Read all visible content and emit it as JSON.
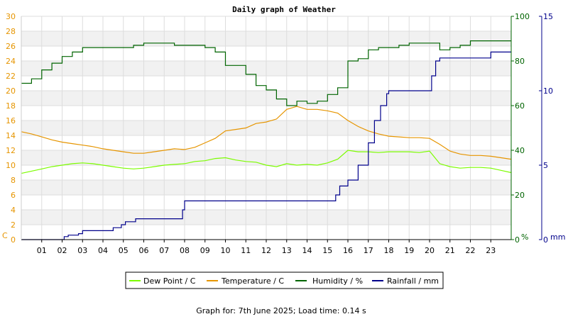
{
  "chart_data": {
    "type": "line",
    "title": "Daily graph of Weather",
    "footer": "Graph for: 7th June 2025; Load time: 0.14 s",
    "grid": true,
    "legend_placement": "bottom-center",
    "x_ticks": [
      "01",
      "02",
      "03",
      "04",
      "05",
      "06",
      "07",
      "08",
      "09",
      "10",
      "11",
      "12",
      "13",
      "14",
      "15",
      "16",
      "17",
      "18",
      "19",
      "20",
      "21",
      "22",
      "23"
    ],
    "x_range_hours": [
      0,
      24
    ],
    "axes": {
      "left": {
        "label": "C",
        "range": [
          0,
          30
        ],
        "ticks": [
          "0",
          "2",
          "4",
          "6",
          "8",
          "10",
          "12",
          "14",
          "16",
          "18",
          "20",
          "22",
          "24",
          "26",
          "28",
          "30"
        ],
        "color": "#e69500"
      },
      "humidity": {
        "label": "%",
        "range": [
          0,
          100
        ],
        "ticks": [
          "0",
          "20",
          "40",
          "60",
          "80",
          "100"
        ],
        "color": "#006400"
      },
      "rain": {
        "label": "mm",
        "range": [
          0,
          15
        ],
        "ticks": [
          "0",
          "5",
          "10",
          "15"
        ],
        "color": "#00008b"
      }
    },
    "series": [
      {
        "name": "Dew Point / C",
        "axis": "left",
        "color": "#7cfc00",
        "step": false,
        "x": [
          0,
          0.5,
          1,
          1.5,
          2,
          2.5,
          3,
          3.5,
          4,
          4.5,
          5,
          5.5,
          6,
          6.5,
          7,
          7.5,
          8,
          8.5,
          9,
          9.5,
          10,
          10.5,
          11,
          11.5,
          12,
          12.5,
          13,
          13.5,
          14,
          14.5,
          15,
          15.5,
          16,
          16.5,
          17,
          17.5,
          18,
          18.5,
          19,
          19.5,
          20,
          20.5,
          21,
          21.5,
          22,
          22.5,
          23,
          23.5,
          24
        ],
        "values": [
          8.9,
          9.2,
          9.5,
          9.8,
          10.0,
          10.2,
          10.3,
          10.2,
          10.0,
          9.8,
          9.6,
          9.5,
          9.6,
          9.8,
          10.0,
          10.1,
          10.2,
          10.5,
          10.6,
          10.9,
          11.0,
          10.7,
          10.5,
          10.4,
          10.0,
          9.8,
          10.2,
          10.0,
          10.1,
          10.0,
          10.3,
          10.8,
          12.0,
          11.8,
          11.8,
          11.7,
          11.8,
          11.8,
          11.8,
          11.7,
          11.9,
          10.2,
          9.8,
          9.6,
          9.7,
          9.7,
          9.6,
          9.3,
          9.0
        ]
      },
      {
        "name": "Temperature / C",
        "axis": "left",
        "color": "#e69500",
        "step": false,
        "x": [
          0,
          0.5,
          1,
          1.5,
          2,
          2.5,
          3,
          3.5,
          4,
          4.5,
          5,
          5.5,
          6,
          6.5,
          7,
          7.5,
          8,
          8.5,
          9,
          9.5,
          10,
          10.5,
          11,
          11.5,
          12,
          12.5,
          13,
          13.5,
          14,
          14.5,
          15,
          15.5,
          16,
          16.5,
          17,
          17.5,
          18,
          18.5,
          19,
          19.5,
          20,
          20.5,
          21,
          21.5,
          22,
          22.5,
          23,
          23.5,
          24
        ],
        "values": [
          14.5,
          14.2,
          13.8,
          13.4,
          13.1,
          12.9,
          12.7,
          12.5,
          12.2,
          12.0,
          11.8,
          11.6,
          11.6,
          11.8,
          12.0,
          12.2,
          12.1,
          12.4,
          13.0,
          13.6,
          14.6,
          14.8,
          15.0,
          15.6,
          15.8,
          16.2,
          17.5,
          17.9,
          17.5,
          17.5,
          17.3,
          17.0,
          16.0,
          15.2,
          14.6,
          14.2,
          13.9,
          13.8,
          13.7,
          13.7,
          13.6,
          12.8,
          11.9,
          11.5,
          11.3,
          11.3,
          11.2,
          11.0,
          10.8
        ]
      },
      {
        "name": "Humidity / %",
        "axis": "humidity",
        "color": "#006400",
        "step": true,
        "x": [
          0,
          0.5,
          1,
          1.5,
          2,
          2.5,
          3,
          3.5,
          4,
          4.5,
          5,
          5.5,
          6,
          6.5,
          7,
          7.5,
          8,
          8.5,
          9,
          9.5,
          10,
          10.5,
          11,
          11.5,
          12,
          12.5,
          13,
          13.5,
          14,
          14.5,
          15,
          15.5,
          16,
          16.5,
          17,
          17.5,
          18,
          18.5,
          19,
          19.5,
          20,
          20.5,
          21,
          21.5,
          22,
          22.5,
          23,
          23.5,
          24
        ],
        "values": [
          70,
          72,
          76,
          79,
          82,
          84,
          86,
          86,
          86,
          86,
          86,
          87,
          88,
          88,
          88,
          87,
          87,
          87,
          86,
          84,
          78,
          78,
          74,
          69,
          67,
          63,
          60,
          62,
          61,
          62,
          65,
          68,
          80,
          81,
          85,
          86,
          86,
          87,
          88,
          88,
          88,
          85,
          86,
          87,
          89,
          89,
          89,
          89,
          89
        ]
      },
      {
        "name": "Rainfall / mm",
        "axis": "rain",
        "color": "#00008b",
        "step": true,
        "x": [
          0,
          1.8,
          2.1,
          2.3,
          2.8,
          3.0,
          4.0,
          4.5,
          4.9,
          5.1,
          5.6,
          7.6,
          7.9,
          8.0,
          15.2,
          15.4,
          15.6,
          16.0,
          16.5,
          17.0,
          17.3,
          17.6,
          17.9,
          18.0,
          19.9,
          20.1,
          20.3,
          20.5,
          22.8,
          23.0,
          24
        ],
        "values": [
          0.0,
          0.0,
          0.2,
          0.3,
          0.4,
          0.6,
          0.6,
          0.8,
          1.0,
          1.2,
          1.4,
          1.4,
          2.0,
          2.6,
          2.6,
          3.0,
          3.6,
          4.0,
          5.0,
          6.5,
          8.0,
          9.0,
          9.8,
          10.0,
          10.0,
          11.0,
          12.0,
          12.2,
          12.2,
          12.6,
          12.6
        ]
      }
    ]
  }
}
